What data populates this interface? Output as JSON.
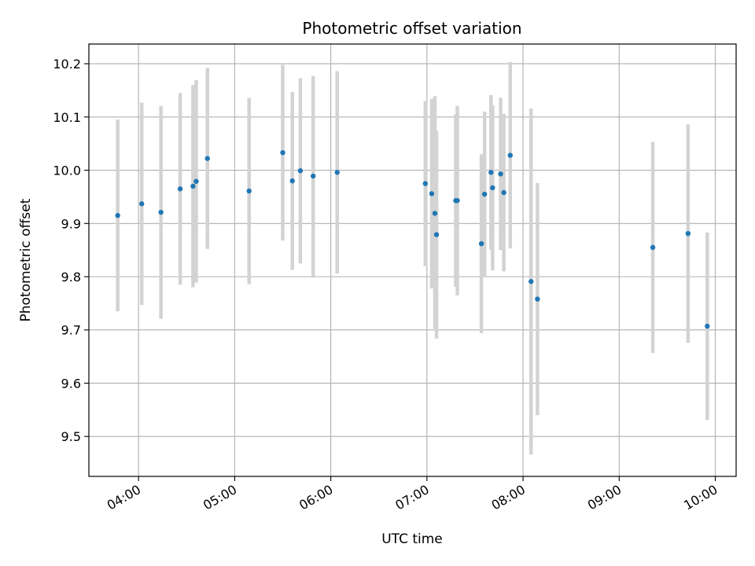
{
  "chart_data": {
    "type": "scatter",
    "title": "Photometric offset variation",
    "xlabel": "UTC time",
    "ylabel": "Photometric offset",
    "xlim": [
      "03:29",
      "10:13"
    ],
    "ylim": [
      9.425,
      10.237
    ],
    "grid": true,
    "x_ticks": [
      "04:00",
      "05:00",
      "06:00",
      "07:00",
      "08:00",
      "09:00",
      "10:00"
    ],
    "y_ticks": [
      "9.5",
      "9.6",
      "9.7",
      "9.8",
      "9.9",
      "10.0",
      "10.1",
      "10.2"
    ],
    "point_color": "#1f77b4",
    "errorbar_color": "#d3d3d3",
    "series": [
      {
        "points": [
          {
            "x": "03:47",
            "y": 9.915,
            "yerr": 0.18
          },
          {
            "x": "04:02",
            "y": 9.937,
            "yerr": 0.19
          },
          {
            "x": "04:14",
            "y": 9.921,
            "yerr": 0.2
          },
          {
            "x": "04:26",
            "y": 9.965,
            "yerr": 0.18
          },
          {
            "x": "04:34",
            "y": 9.97,
            "yerr": 0.19
          },
          {
            "x": "04:36",
            "y": 9.979,
            "yerr": 0.19
          },
          {
            "x": "04:43",
            "y": 10.022,
            "yerr": 0.17
          },
          {
            "x": "05:09",
            "y": 9.961,
            "yerr": 0.175
          },
          {
            "x": "05:30",
            "y": 10.033,
            "yerr": 0.165
          },
          {
            "x": "05:36",
            "y": 9.98,
            "yerr": 0.167
          },
          {
            "x": "05:41",
            "y": 9.999,
            "yerr": 0.174
          },
          {
            "x": "05:49",
            "y": 9.989,
            "yerr": 0.188
          },
          {
            "x": "06:04",
            "y": 9.996,
            "yerr": 0.19
          },
          {
            "x": "06:59",
            "y": 9.975,
            "yerr": 0.155
          },
          {
            "x": "07:03",
            "y": 9.956,
            "yerr": 0.178
          },
          {
            "x": "07:05",
            "y": 9.919,
            "yerr": 0.22
          },
          {
            "x": "07:06",
            "y": 9.879,
            "yerr": 0.195
          },
          {
            "x": "07:18",
            "y": 9.943,
            "yerr": 0.162
          },
          {
            "x": "07:19",
            "y": 9.943,
            "yerr": 0.178
          },
          {
            "x": "07:34",
            "y": 9.862,
            "yerr": 0.168
          },
          {
            "x": "07:36",
            "y": 9.955,
            "yerr": 0.155
          },
          {
            "x": "07:40",
            "y": 9.996,
            "yerr": 0.145
          },
          {
            "x": "07:41",
            "y": 9.967,
            "yerr": 0.155
          },
          {
            "x": "07:46",
            "y": 9.993,
            "yerr": 0.143
          },
          {
            "x": "07:48",
            "y": 9.958,
            "yerr": 0.148
          },
          {
            "x": "07:52",
            "y": 10.028,
            "yerr": 0.175
          },
          {
            "x": "08:05",
            "y": 9.791,
            "yerr": 0.325
          },
          {
            "x": "08:09",
            "y": 9.758,
            "yerr": 0.218
          },
          {
            "x": "09:21",
            "y": 9.855,
            "yerr": 0.198
          },
          {
            "x": "09:43",
            "y": 9.881,
            "yerr": 0.205
          },
          {
            "x": "09:55",
            "y": 9.707,
            "yerr": 0.176
          }
        ]
      }
    ]
  }
}
